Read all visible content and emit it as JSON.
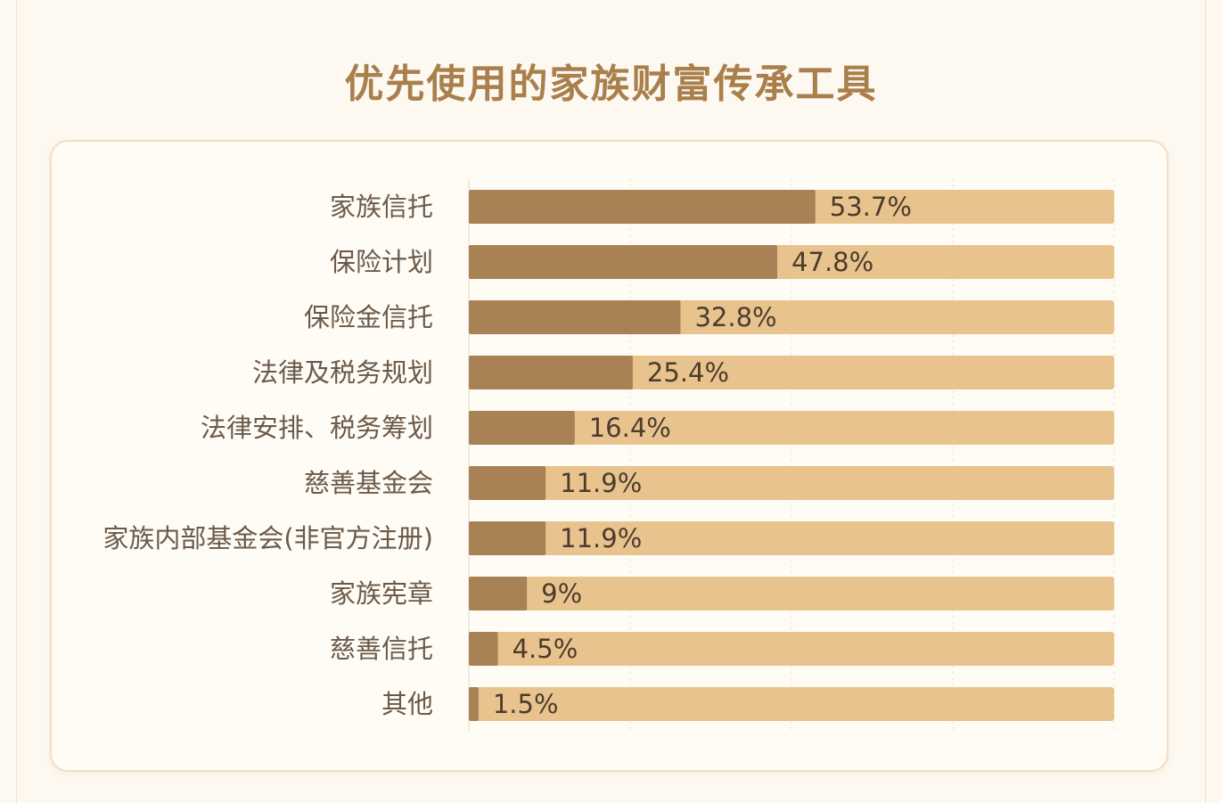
{
  "title": "优先使用的家族财富传承工具",
  "colors": {
    "bar_fill": "#a88154",
    "bar_track": "#e9c38e",
    "title": "#a97f4c",
    "grid": "#ebe3d6"
  },
  "chart_data": {
    "type": "bar",
    "orientation": "horizontal",
    "title": "优先使用的家族财富传承工具",
    "xlabel": "",
    "ylabel": "",
    "xlim": [
      0,
      100
    ],
    "grid": true,
    "categories": [
      "家族信托",
      "保险计划",
      "保险金信托",
      "法律及税务规划",
      "法律安排、税务筹划",
      "慈善基金会",
      "家族内部基金会(非官方注册)",
      "家族宪章",
      "慈善信托",
      "其他"
    ],
    "values": [
      53.7,
      47.8,
      32.8,
      25.4,
      16.4,
      11.9,
      11.9,
      9,
      4.5,
      1.5
    ],
    "value_labels": [
      "53.7%",
      "47.8%",
      "32.8%",
      "25.4%",
      "16.4%",
      "11.9%",
      "11.9%",
      "9%",
      "4.5%",
      "1.5%"
    ]
  }
}
